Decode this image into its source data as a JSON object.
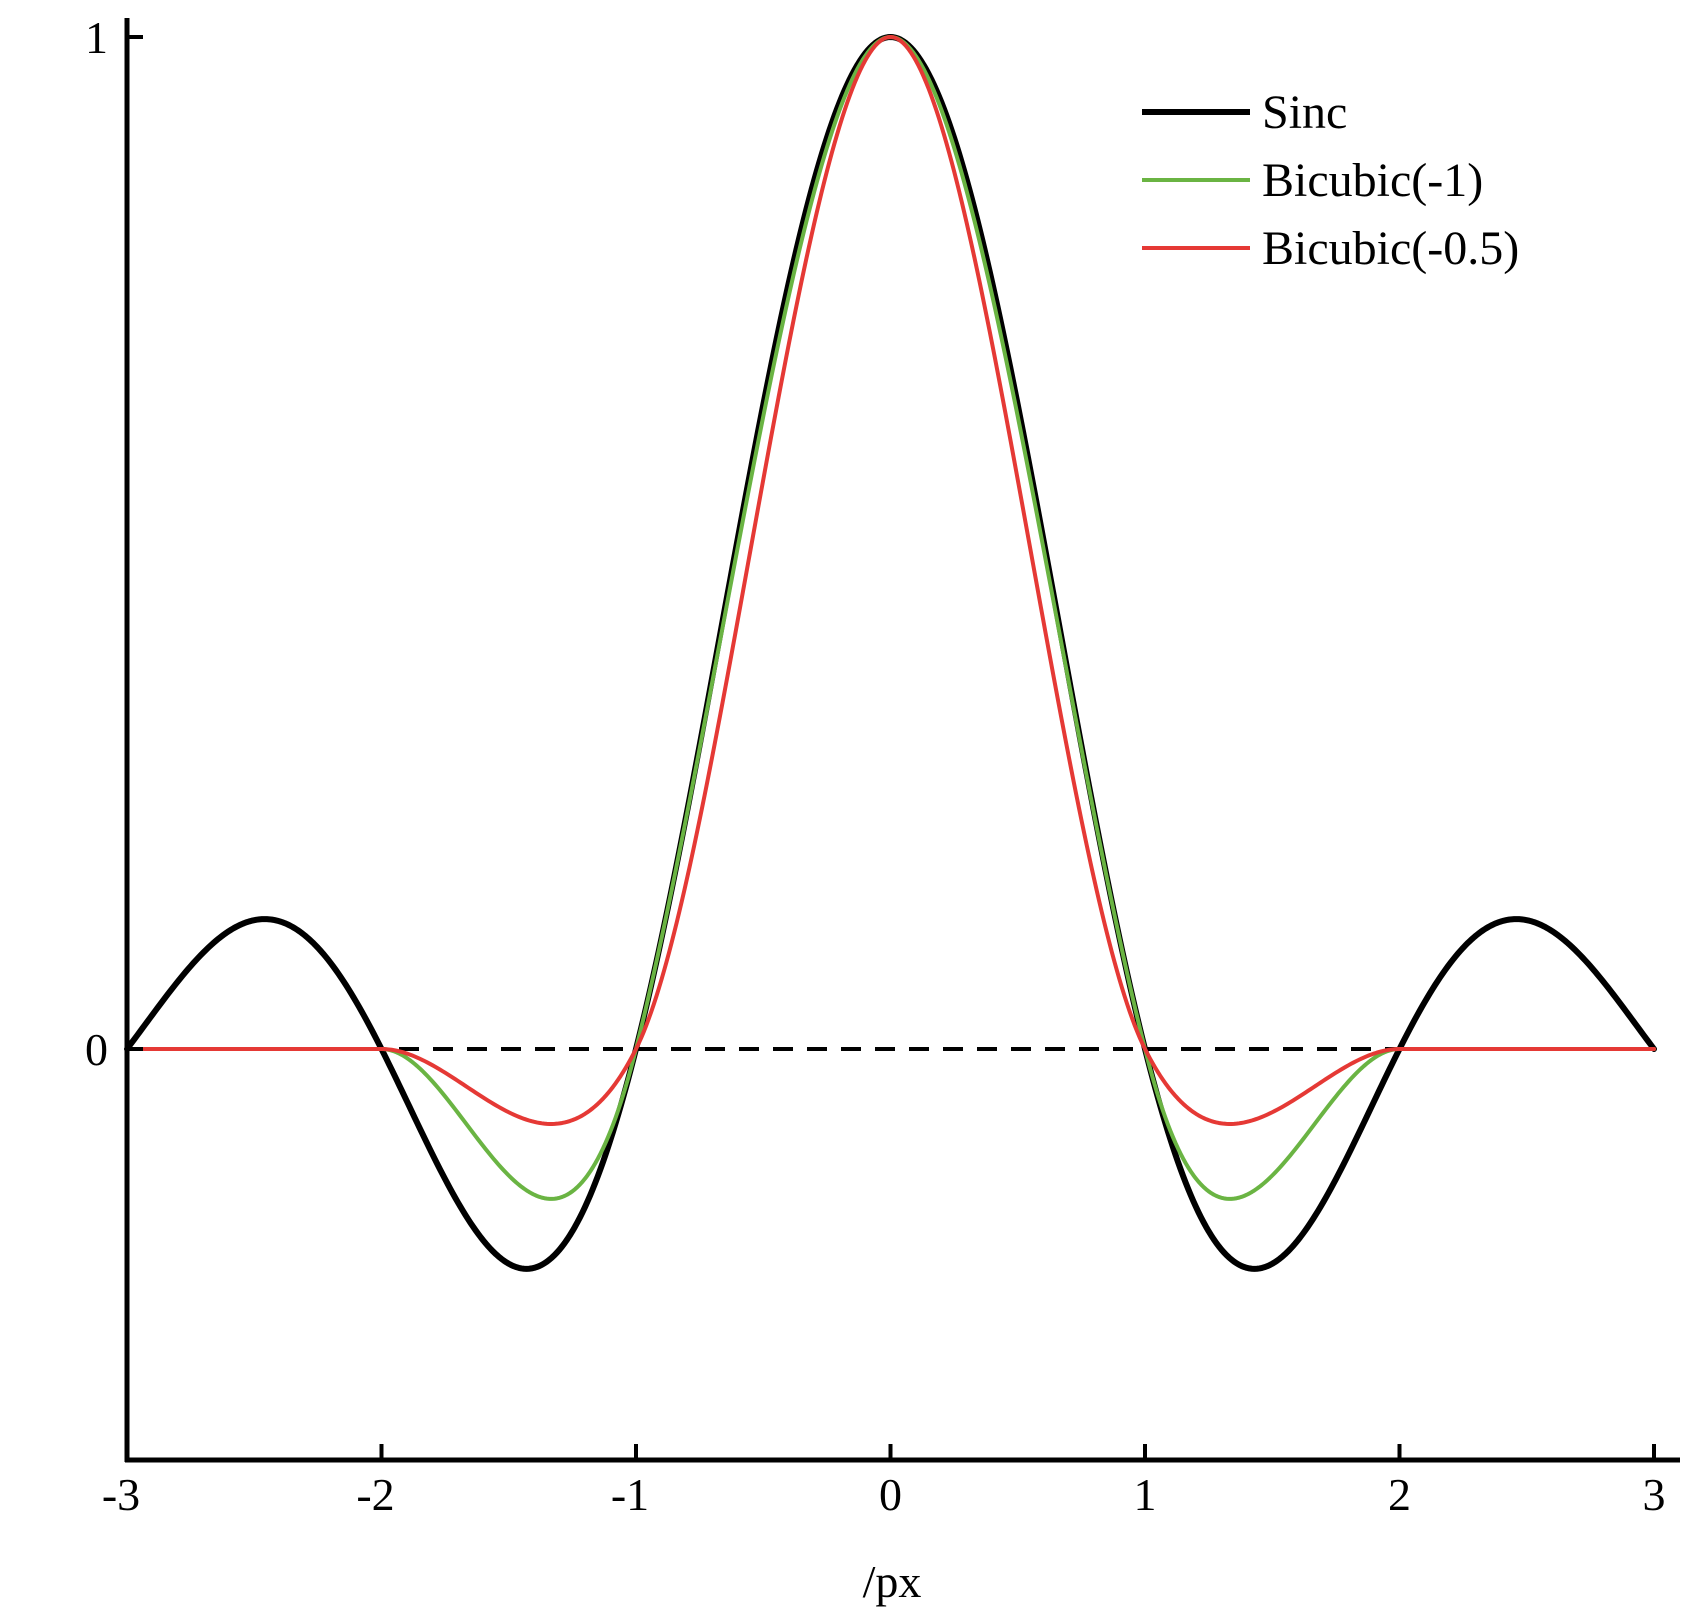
{
  "chart_data": {
    "type": "line",
    "title": "",
    "xlabel": "/px",
    "ylabel": "",
    "xlim": [
      -3,
      3
    ],
    "ylim": [
      -0.4,
      1
    ],
    "x_ticks": [
      {
        "value": -3,
        "label": "-3"
      },
      {
        "value": -2,
        "label": "-2"
      },
      {
        "value": -1,
        "label": "-1"
      },
      {
        "value": 0,
        "label": "0"
      },
      {
        "value": 1,
        "label": "1"
      },
      {
        "value": 2,
        "label": "2"
      },
      {
        "value": 3,
        "label": "3"
      }
    ],
    "y_ticks": [
      {
        "value": 0,
        "label": "0"
      },
      {
        "value": 1,
        "label": "1"
      }
    ],
    "grid": false,
    "legend_position": "top-right",
    "zero_line": {
      "style": "dashed",
      "color": "#000000"
    },
    "series": [
      {
        "name": "Sinc",
        "color": "#000000",
        "kernel": "sinc",
        "x": [
          -3,
          -2.5,
          -2,
          -1.5,
          -1,
          -0.5,
          0,
          0.5,
          1,
          1.5,
          2,
          2.5,
          3
        ],
        "values": [
          0,
          0.127,
          0,
          -0.212,
          0,
          0.637,
          1,
          0.637,
          0,
          -0.212,
          0,
          0.127,
          0
        ]
      },
      {
        "name": "Bicubic(-1)",
        "color": "#6ab443",
        "kernel": "bicubic",
        "a": -1,
        "x": [
          -3,
          -2.5,
          -2,
          -1.5,
          -1,
          -0.5,
          0,
          0.5,
          1,
          1.5,
          2,
          2.5,
          3
        ],
        "values": [
          0,
          0,
          0,
          -0.125,
          0,
          0.625,
          1,
          0.625,
          0,
          -0.125,
          0,
          0,
          0
        ]
      },
      {
        "name": "Bicubic(-0.5)",
        "color": "#e53935",
        "kernel": "bicubic",
        "a": -0.5,
        "x": [
          -3,
          -2.5,
          -2,
          -1.5,
          -1,
          -0.5,
          0,
          0.5,
          1,
          1.5,
          2,
          2.5,
          3
        ],
        "values": [
          0,
          0,
          0,
          -0.0625,
          0,
          0.5625,
          1,
          0.5625,
          0,
          -0.0625,
          0,
          0,
          0
        ]
      }
    ]
  }
}
